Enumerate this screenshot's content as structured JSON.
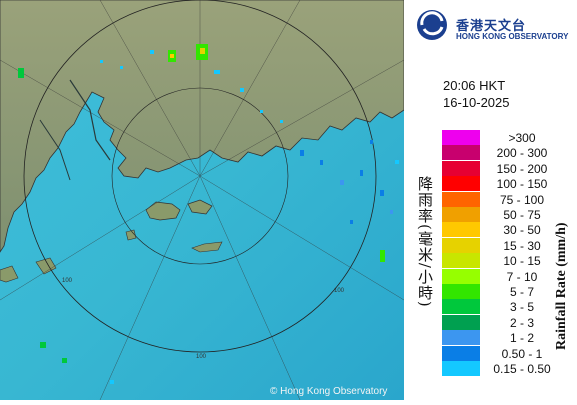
{
  "logo": {
    "chinese_name": "香港天文台",
    "english_name": "HONG KONG OBSERVATORY"
  },
  "timestamp": {
    "time": "20:06 HKT",
    "date": "16-10-2025"
  },
  "legend": {
    "title_zh": "降雨率(毫米/小時)",
    "title_en": "Rainfall Rate (mm/h)",
    "items": [
      {
        "label": ">300",
        "color": "#ee00ee"
      },
      {
        "label": "200 - 300",
        "color": "#c8006e"
      },
      {
        "label": "150 - 200",
        "color": "#e60032"
      },
      {
        "label": "100 - 150",
        "color": "#ff0000"
      },
      {
        "label": "75 - 100",
        "color": "#ff6400"
      },
      {
        "label": "50 - 75",
        "color": "#f0a000"
      },
      {
        "label": "30 - 50",
        "color": "#ffc800"
      },
      {
        "label": "15 - 30",
        "color": "#e6d200"
      },
      {
        "label": "10 - 15",
        "color": "#c8e600"
      },
      {
        "label": "7 - 10",
        "color": "#96ff00"
      },
      {
        "label": "5 - 7",
        "color": "#32e600"
      },
      {
        "label": "3 - 5",
        "color": "#00c83c"
      },
      {
        "label": "2 - 3",
        "color": "#00a050"
      },
      {
        "label": "1 - 2",
        "color": "#3c96f0"
      },
      {
        "label": "0.50 - 1",
        "color": "#0a7ee6"
      },
      {
        "label": "0.15 - 0.50",
        "color": "#14c8ff"
      }
    ]
  },
  "map": {
    "ring_labels": [
      "100",
      "100",
      "100"
    ],
    "copyright": "© Hong Kong Observatory",
    "sea_color": "#35b6d6",
    "land_color": "#8a9a6a"
  }
}
